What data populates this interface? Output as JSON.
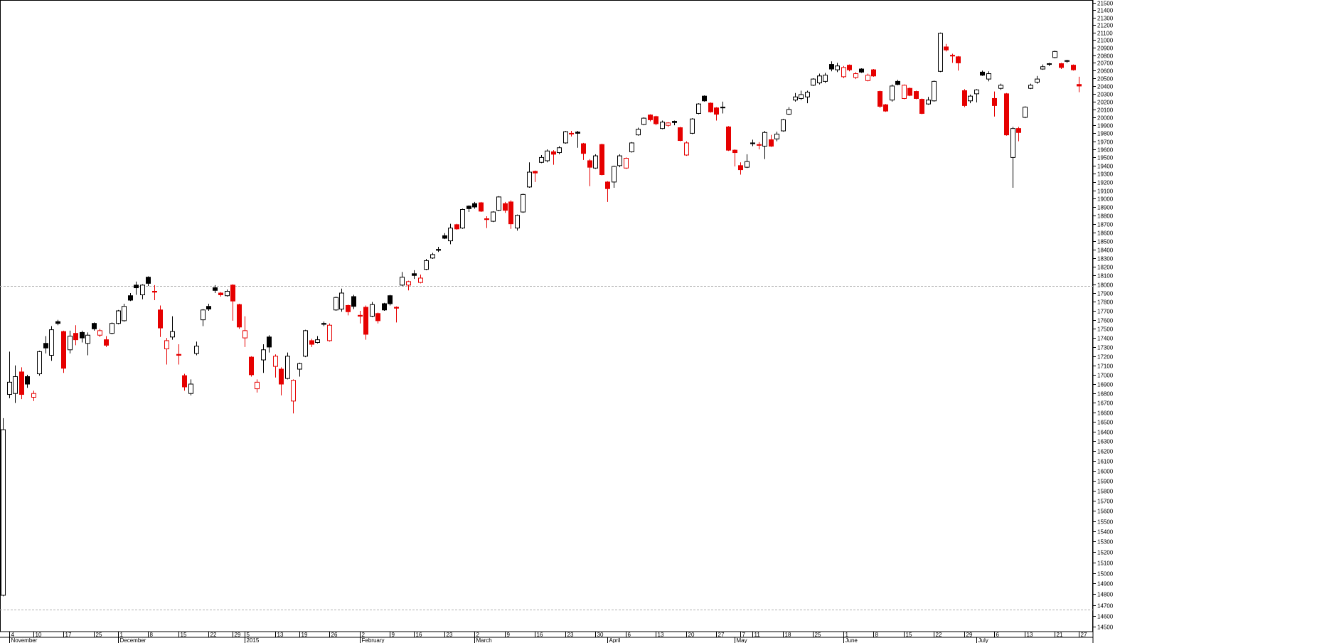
{
  "chart_data": {
    "type": "candlestick",
    "log_scale": true,
    "ylim": [
      14500,
      21500
    ],
    "yticks": [
      21500,
      21400,
      21300,
      21200,
      21100,
      21000,
      20900,
      20800,
      20700,
      20600,
      20500,
      20400,
      20300,
      20200,
      20100,
      20000,
      19900,
      19800,
      19700,
      19600,
      19500,
      19400,
      19300,
      19200,
      19100,
      19000,
      18900,
      18800,
      18700,
      18600,
      18500,
      18400,
      18300,
      18200,
      18100,
      18000,
      17900,
      17800,
      17700,
      17600,
      17500,
      17400,
      17300,
      17200,
      17100,
      17000,
      16900,
      16800,
      16700,
      16600,
      16500,
      16400,
      16300,
      16200,
      16100,
      16000,
      15900,
      15800,
      15700,
      15600,
      15500,
      15400,
      15300,
      15200,
      15100,
      15000,
      14900,
      14800,
      14700,
      14600,
      14500
    ],
    "colors": {
      "rise": "#000000",
      "fall": "#e60000",
      "hollow": "#ffffff"
    },
    "reference_lines": [
      17980,
      14660
    ],
    "categories": [
      null,
      "4",
      null,
      null,
      null,
      "10",
      null,
      null,
      null,
      null,
      "17",
      null,
      null,
      null,
      null,
      "25",
      null,
      null,
      null,
      "1",
      null,
      null,
      null,
      null,
      "8",
      null,
      null,
      null,
      null,
      "15",
      null,
      null,
      null,
      null,
      "22",
      null,
      null,
      null,
      "29",
      null,
      "5",
      null,
      null,
      null,
      null,
      "13",
      null,
      null,
      null,
      "19",
      null,
      null,
      null,
      null,
      "26",
      null,
      null,
      null,
      null,
      "2",
      null,
      null,
      null,
      null,
      "9",
      null,
      null,
      null,
      "16",
      null,
      null,
      null,
      null,
      "23",
      null,
      null,
      null,
      null,
      "2",
      null,
      null,
      null,
      null,
      "9",
      null,
      null,
      null,
      null,
      "16",
      null,
      null,
      null,
      null,
      "23",
      null,
      null,
      null,
      null,
      "30",
      null,
      null,
      null,
      null,
      "6",
      null,
      null,
      null,
      null,
      "13",
      null,
      null,
      null,
      null,
      "20",
      null,
      null,
      null,
      null,
      "27",
      null,
      null,
      null,
      "7",
      null,
      "11",
      null,
      null,
      null,
      null,
      "18",
      null,
      null,
      null,
      null,
      "25",
      null,
      null,
      null,
      null,
      "1",
      null,
      null,
      null,
      null,
      "8",
      null,
      null,
      null,
      null,
      "15",
      null,
      null,
      null,
      null,
      "22",
      null,
      null,
      null,
      null,
      "29",
      null,
      null,
      null,
      null,
      "6",
      null,
      null,
      null,
      null,
      "13",
      null,
      null,
      null,
      null,
      "21",
      null,
      null,
      null,
      "27"
    ],
    "months": [
      null,
      "November",
      null,
      null,
      null,
      null,
      null,
      null,
      null,
      null,
      null,
      null,
      null,
      null,
      null,
      null,
      null,
      null,
      null,
      "December",
      null,
      null,
      null,
      null,
      null,
      null,
      null,
      null,
      null,
      null,
      null,
      null,
      null,
      null,
      null,
      null,
      null,
      null,
      null,
      null,
      "2015",
      null,
      null,
      null,
      null,
      null,
      null,
      null,
      null,
      null,
      null,
      null,
      null,
      null,
      null,
      null,
      null,
      null,
      null,
      "February",
      null,
      null,
      null,
      null,
      null,
      null,
      null,
      null,
      null,
      null,
      null,
      null,
      null,
      null,
      null,
      null,
      null,
      null,
      "March",
      null,
      null,
      null,
      null,
      null,
      null,
      null,
      null,
      null,
      null,
      null,
      null,
      null,
      null,
      null,
      null,
      null,
      null,
      null,
      null,
      null,
      "April",
      null,
      null,
      null,
      null,
      null,
      null,
      null,
      null,
      null,
      null,
      null,
      null,
      null,
      null,
      null,
      null,
      null,
      null,
      null,
      null,
      "May",
      null,
      null,
      null,
      null,
      null,
      null,
      null,
      null,
      null,
      null,
      null,
      null,
      null,
      null,
      null,
      null,
      null,
      "June",
      null,
      null,
      null,
      null,
      null,
      null,
      null,
      null,
      null,
      null,
      null,
      null,
      null,
      null,
      null,
      null,
      null,
      null,
      null,
      null,
      null,
      "July",
      null,
      null,
      null,
      null,
      null,
      null,
      null,
      null,
      null,
      null,
      null,
      null,
      null,
      null,
      null,
      null,
      null
    ],
    "open": [
      14790,
      16790,
      16800,
      17030,
      16980,
      16760,
      17010,
      17340,
      17210,
      17580,
      17470,
      17270,
      17450,
      17460,
      17340,
      17560,
      17430,
      17380,
      17450,
      17560,
      17590,
      17870,
      17990,
      17880,
      18080,
      17920,
      17710,
      17280,
      17410,
      17220,
      16990,
      16800,
      17230,
      17600,
      17750,
      17960,
      17900,
      17870,
      17990,
      17770,
      17400,
      17190,
      16850,
      17160,
      17410,
      17090,
      17060,
      16960,
      16720,
      17060,
      17200,
      17370,
      17350,
      17560,
      17370,
      17710,
      17720,
      17760,
      17860,
      17650,
      17740,
      17640,
      17670,
      17780,
      17870,
      17740,
      17990,
      17990,
      18120,
      18020,
      18170,
      18300,
      18400,
      18560,
      18500,
      18690,
      18650,
      18910,
      18940,
      18950,
      18760,
      18730,
      18860,
      18940,
      18960,
      18650,
      18840,
      19140,
      19330,
      19440,
      19460,
      19570,
      19560,
      19680,
      19800,
      19815,
      19670,
      19460,
      19370,
      19660,
      19200,
      19200,
      19400,
      19370,
      19570,
      19780,
      19910,
      20030,
      20010,
      19860,
      19900,
      19950,
      19870,
      19530,
      19800,
      20050,
      20270,
      20180,
      20120,
      20130,
      19880,
      19590,
      19400,
      19380,
      19680,
      19660,
      19640,
      19720,
      19730,
      19830,
      20040,
      20220,
      20240,
      20260,
      20410,
      20440,
      20460,
      20680,
      20610,
      20520,
      20670,
      20510,
      20620,
      20470,
      20610,
      20330,
      20160,
      20220,
      20460,
      20240,
      20370,
      20330,
      20230,
      20170,
      20210,
      20590,
      20910,
      20800,
      20780,
      20340,
      20210,
      20300,
      20580,
      20490,
      20240,
      20370,
      20300,
      19500,
      19860,
      20000,
      20370,
      20450,
      20620,
      20690,
      20770,
      20690,
      20730,
      20670,
      20420
    ],
    "high": [
      16540,
      17250,
      17100,
      17080,
      17000,
      16830,
      17260,
      17420,
      17530,
      17600,
      17480,
      17480,
      17540,
      17480,
      17460,
      17570,
      17500,
      17420,
      17570,
      17710,
      17780,
      17900,
      18030,
      18000,
      18090,
      17990,
      17760,
      17400,
      17640,
      17330,
      17010,
      16950,
      17360,
      17720,
      17780,
      17990,
      17910,
      17940,
      18000,
      17780,
      17640,
      17200,
      16950,
      17330,
      17430,
      17220,
      17080,
      17240,
      16950,
      17130,
      17490,
      17390,
      17420,
      17580,
      17560,
      17860,
      17950,
      17770,
      17880,
      17700,
      17760,
      17800,
      17680,
      17790,
      17880,
      17750,
      18140,
      18040,
      18160,
      18110,
      18290,
      18360,
      18430,
      18590,
      18700,
      18700,
      18880,
      18920,
      18960,
      18960,
      18790,
      18850,
      19030,
      18960,
      18980,
      18810,
      19060,
      19440,
      19340,
      19530,
      19600,
      19590,
      19640,
      19830,
      19830,
      19830,
      19680,
      19480,
      19540,
      19670,
      19210,
      19400,
      19540,
      19500,
      19690,
      19870,
      20000,
      20040,
      20020,
      19960,
      19940,
      19960,
      19880,
      19700,
      19990,
      20180,
      20280,
      20190,
      20130,
      20200,
      19890,
      19600,
      19440,
      19540,
      19720,
      19690,
      19830,
      19780,
      19820,
      19980,
      20130,
      20310,
      20340,
      20340,
      20500,
      20560,
      20570,
      20720,
      20700,
      20660,
      20680,
      20580,
      20630,
      20560,
      20620,
      20340,
      20170,
      20420,
      20480,
      20420,
      20380,
      20340,
      20240,
      20260,
      20470,
      21100,
      20950,
      20820,
      20790,
      20360,
      20290,
      20360,
      20600,
      20590,
      20330,
      20430,
      20310,
      19880,
      19880,
      20140,
      20430,
      20530,
      20680,
      20700,
      20860,
      20700,
      20740,
      20680,
      20520
    ],
    "low": [
      14780,
      16750,
      16700,
      16740,
      16860,
      16720,
      16990,
      17230,
      17150,
      17540,
      17020,
      17230,
      17320,
      17350,
      17210,
      17480,
      17410,
      17300,
      17440,
      17550,
      17580,
      17810,
      17880,
      17830,
      17980,
      17820,
      17410,
      17110,
      17380,
      17110,
      16830,
      16780,
      17210,
      17530,
      17700,
      17900,
      17860,
      17860,
      17590,
      17500,
      17300,
      16980,
      16810,
      17020,
      17240,
      16970,
      16780,
      16950,
      16590,
      16980,
      17190,
      17300,
      17340,
      17530,
      17360,
      17700,
      17690,
      17650,
      17720,
      17560,
      17380,
      17630,
      17560,
      17700,
      17760,
      17570,
      17980,
      17930,
      18060,
      18010,
      18160,
      18290,
      18370,
      18520,
      18460,
      18630,
      18640,
      18840,
      18880,
      18840,
      18650,
      18720,
      18850,
      18830,
      18640,
      18620,
      18830,
      19130,
      19200,
      19430,
      19440,
      19410,
      19540,
      19670,
      19760,
      19620,
      19470,
      19150,
      19360,
      19280,
      18960,
      19130,
      19380,
      19360,
      19560,
      19770,
      19900,
      19950,
      19900,
      19850,
      19880,
      19900,
      19700,
      19520,
      19790,
      20040,
      20200,
      20060,
      19960,
      20050,
      19580,
      19390,
      19290,
      19370,
      19640,
      19600,
      19480,
      19630,
      19700,
      19820,
      20030,
      20200,
      20220,
      20180,
      20400,
      20420,
      20440,
      20590,
      20580,
      20500,
      20590,
      20490,
      20570,
      20460,
      20520,
      20120,
      20070,
      20200,
      20410,
      20230,
      20270,
      20230,
      20040,
      20160,
      20200,
      20580,
      20850,
      20700,
      20600,
      20130,
      20180,
      20190,
      20530,
      20460,
      20010,
      20350,
      19770,
      19130,
      19700,
      19990,
      20360,
      20430,
      20610,
      20660,
      20760,
      20620,
      20700,
      20600,
      20320
    ],
    "close": [
      16420,
      16920,
      16980,
      16790,
      16900,
      16800,
      17250,
      17290,
      17490,
      17560,
      17070,
      17420,
      17380,
      17400,
      17430,
      17500,
      17480,
      17320,
      17560,
      17700,
      17750,
      17820,
      17960,
      17990,
      18010,
      17910,
      17510,
      17370,
      17470,
      17210,
      16870,
      16900,
      17310,
      17710,
      17720,
      17930,
      17880,
      17920,
      17810,
      17520,
      17480,
      17000,
      16920,
      17270,
      17300,
      17200,
      16900,
      17200,
      16940,
      17120,
      17480,
      17330,
      17380,
      17550,
      17540,
      17850,
      17900,
      17690,
      17750,
      17640,
      17440,
      17770,
      17590,
      17710,
      17780,
      17730,
      18080,
      18030,
      18100,
      18070,
      18270,
      18340,
      18390,
      18530,
      18650,
      18640,
      18870,
      18880,
      18900,
      18850,
      18750,
      18840,
      19020,
      18860,
      18700,
      18800,
      19050,
      19320,
      19310,
      19500,
      19580,
      19540,
      19620,
      19820,
      19790,
      19800,
      19550,
      19380,
      19520,
      19290,
      19120,
      19390,
      19520,
      19490,
      19680,
      19850,
      19990,
      19970,
      19920,
      19940,
      19930,
      19935,
      19710,
      19680,
      19980,
      20170,
      20210,
      20070,
      20040,
      20120,
      19590,
      19560,
      19350,
      19450,
      19670,
      19650,
      19810,
      19640,
      19790,
      19970,
      20100,
      20260,
      20290,
      20320,
      20490,
      20530,
      20540,
      20620,
      20660,
      20640,
      20610,
      20560,
      20580,
      20540,
      20530,
      20140,
      20080,
      20400,
      20420,
      20410,
      20280,
      20240,
      20050,
      20220,
      20460,
      21090,
      20870,
      20790,
      20700,
      20150,
      20270,
      20350,
      20540,
      20560,
      20150,
      20410,
      19780,
      19860,
      19810,
      20130,
      20410,
      20490,
      20650,
      20680,
      20850,
      20640,
      20720,
      20610,
      20400
    ]
  }
}
